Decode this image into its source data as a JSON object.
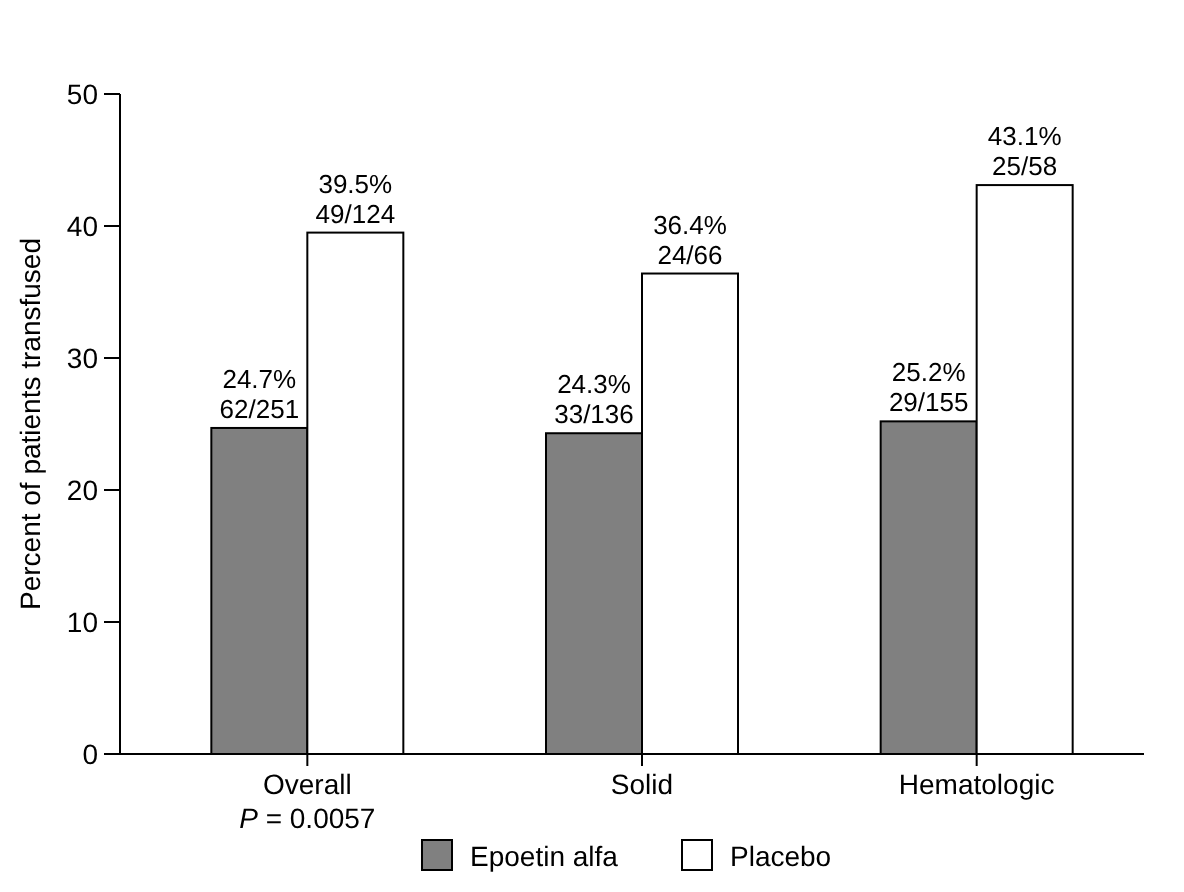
{
  "chart_data": {
    "type": "bar",
    "ylabel": "Percent of patients transfused",
    "categories": [
      "Overall",
      "Solid",
      "Hematologic"
    ],
    "series": [
      {
        "name": "Epoetin alfa",
        "color": "#808080",
        "values": [
          24.7,
          24.3,
          25.2
        ],
        "value_labels": [
          "24.7%\n62/251",
          "24.3%\n33/136",
          "25.2%\n29/155"
        ]
      },
      {
        "name": "Placebo",
        "color": "#ffffff",
        "values": [
          39.5,
          36.4,
          43.1
        ],
        "value_labels": [
          "39.5%\n49/124",
          "36.4%\n24/66",
          "43.1%\n25/58"
        ]
      }
    ],
    "ylim": [
      0,
      50
    ],
    "yticks": [
      0,
      10,
      20,
      30,
      40,
      50
    ],
    "grid": false,
    "legend": "bottom",
    "annotations": [
      "P = 0.0057"
    ]
  }
}
